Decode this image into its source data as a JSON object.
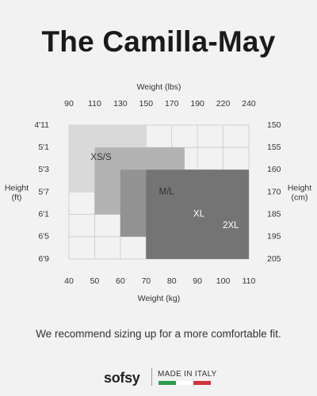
{
  "header": {
    "title": "The Camilla-May"
  },
  "chart_data": {
    "type": "table",
    "top_axis": {
      "label": "Weight (lbs)",
      "ticks": [
        "90",
        "110",
        "130",
        "150",
        "170",
        "190",
        "220",
        "240"
      ]
    },
    "bottom_axis": {
      "label": "Weight (kg)",
      "ticks": [
        "40",
        "50",
        "60",
        "70",
        "80",
        "90",
        "100",
        "110"
      ],
      "range": [
        40,
        110
      ]
    },
    "left_axis": {
      "label_lines": [
        "Height",
        "(ft)"
      ],
      "ticks": [
        "4'11",
        "5'1",
        "5'3",
        "5'7",
        "6'1",
        "6'5",
        "6'9"
      ]
    },
    "right_axis": {
      "label_lines": [
        "Height",
        "(cm)"
      ],
      "ticks": [
        "150",
        "155",
        "160",
        "170",
        "185",
        "195",
        "205"
      ]
    },
    "height_steps": 6,
    "grid": true,
    "sizes": [
      {
        "name": "XS/S",
        "weight_kg": [
          40,
          70
        ],
        "height_ft": [
          "4'11",
          "5'7"
        ],
        "color": "#d9d9d9",
        "text_color": "#333333"
      },
      {
        "name": "M/L",
        "weight_kg": [
          50,
          85
        ],
        "height_ft": [
          "5'1",
          "6'1"
        ],
        "color": "#b3b3b3",
        "text_color": "#333333"
      },
      {
        "name": "XL",
        "weight_kg": [
          60,
          96
        ],
        "height_ft": [
          "5'3",
          "6'5"
        ],
        "color": "#929292",
        "text_color": "#ffffff"
      },
      {
        "name": "2XL",
        "weight_kg": [
          70,
          110
        ],
        "height_ft": [
          "5'3",
          "6'9"
        ],
        "color": "#747474",
        "text_color": "#ffffff"
      }
    ]
  },
  "note": "We recommend sizing up for a more comfortable fit.",
  "footer": {
    "brand": "sofsy",
    "made_in": "MADE IN ITALY",
    "flag_colors": [
      "#2e9b4a",
      "#ffffff",
      "#d0343c"
    ]
  }
}
